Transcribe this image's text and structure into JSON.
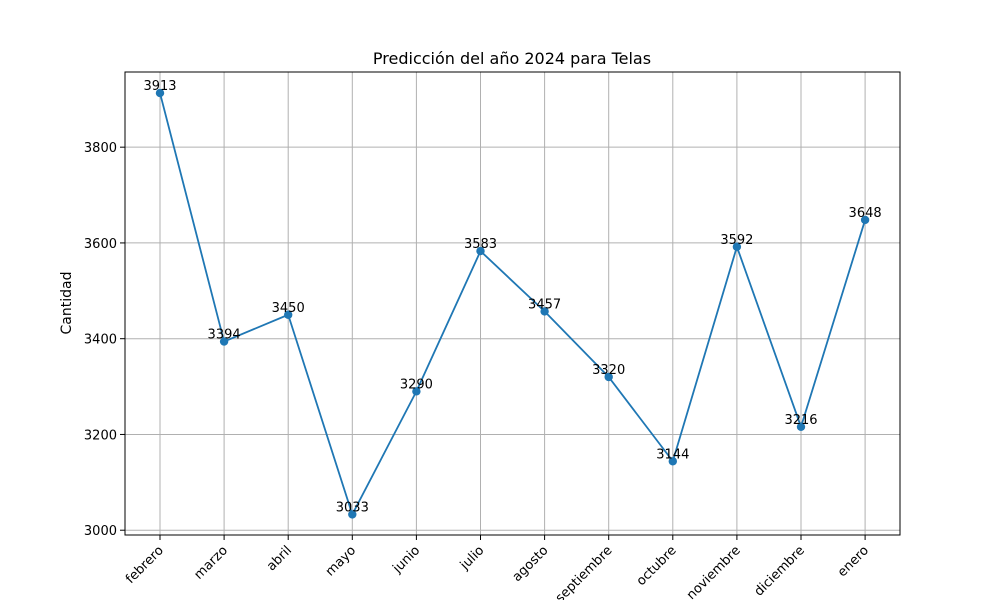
{
  "chart_data": {
    "type": "line",
    "title": "Predicción del año 2024 para Telas",
    "xlabel": "",
    "ylabel": "Cantidad",
    "categories": [
      "febrero",
      "marzo",
      "abril",
      "mayo",
      "junio",
      "julio",
      "agosto",
      "septiembre",
      "octubre",
      "noviembre",
      "diciembre",
      "enero"
    ],
    "series": [
      {
        "values": [
          3913,
          3394,
          3450,
          3033,
          3290,
          3583,
          3457,
          3320,
          3144,
          3592,
          3216,
          3648
        ]
      }
    ],
    "data_labels": [
      "3913",
      "3394",
      "3450",
      "3033",
      "3290",
      "3583",
      "3457",
      "3320",
      "3144",
      "3592",
      "3216",
      "3648"
    ],
    "y_ticks": [
      3000,
      3200,
      3400,
      3600,
      3800
    ],
    "ylim": [
      2990,
      3957
    ],
    "grid": true,
    "marker": "circle",
    "line_color": "#1f77b4"
  }
}
